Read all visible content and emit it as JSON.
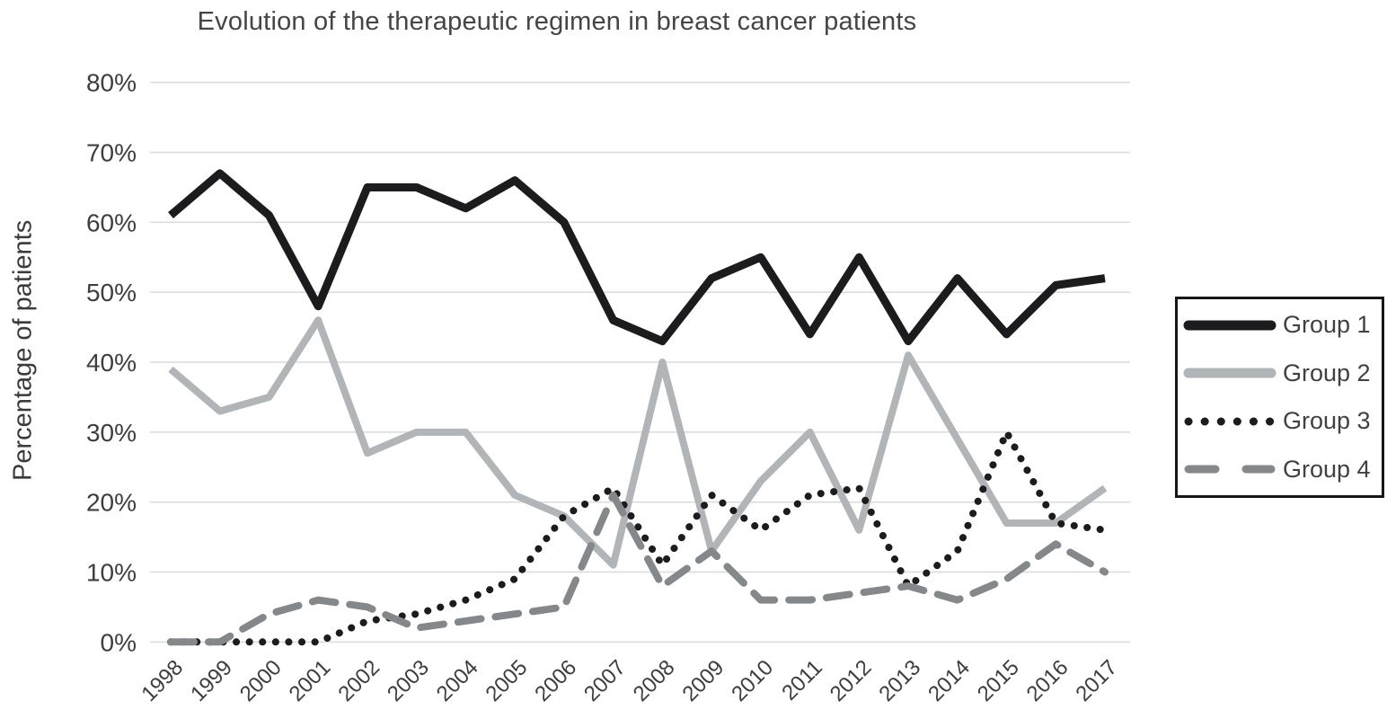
{
  "chart_data": {
    "type": "line",
    "title": "Evolution of the therapeutic regimen in breast cancer patients",
    "xlabel": "",
    "ylabel": "Percentage of patients",
    "categories": [
      "1998",
      "1999",
      "2000",
      "2001",
      "2002",
      "2003",
      "2004",
      "2005",
      "2006",
      "2007",
      "2008",
      "2009",
      "2010",
      "2011",
      "2012",
      "2013",
      "2014",
      "2015",
      "2016",
      "2017"
    ],
    "y_tick_values": [
      0,
      10,
      20,
      30,
      40,
      50,
      60,
      70,
      80
    ],
    "y_tick_labels": [
      "0%",
      "10%",
      "20%",
      "30%",
      "40%",
      "50%",
      "60%",
      "70%",
      "80%"
    ],
    "ylim": [
      0,
      80
    ],
    "grid": true,
    "legend_position": "right",
    "colors": {
      "grid": "#dcdcdc",
      "tick_text": "#3e3e3e",
      "legend_border": "#161616"
    },
    "series": [
      {
        "name": "Group 1",
        "style": "solid",
        "color": "#1c1c1e",
        "width": 9,
        "values": [
          61,
          67,
          61,
          48,
          65,
          65,
          62,
          66,
          60,
          46,
          43,
          52,
          55,
          44,
          55,
          43,
          52,
          44,
          51,
          52
        ]
      },
      {
        "name": "Group 2",
        "style": "solid",
        "color": "#b2b5b7",
        "width": 8,
        "values": [
          39,
          33,
          35,
          46,
          27,
          30,
          30,
          21,
          18,
          11,
          40,
          13,
          23,
          30,
          16,
          41,
          29,
          17,
          17,
          22
        ]
      },
      {
        "name": "Group 3",
        "style": "dotted",
        "color": "#1c1c1e",
        "width": 8,
        "values": [
          0,
          0,
          0,
          0,
          3,
          4,
          6,
          9,
          18,
          22,
          11,
          21,
          16,
          21,
          22,
          8,
          13,
          30,
          17,
          16
        ]
      },
      {
        "name": "Group 4",
        "style": "dashed",
        "color": "#85888b",
        "width": 8,
        "values": [
          0,
          0,
          4,
          6,
          5,
          2,
          3,
          4,
          5,
          21,
          8,
          13,
          6,
          6,
          7,
          8,
          6,
          9,
          14,
          10
        ]
      }
    ]
  }
}
